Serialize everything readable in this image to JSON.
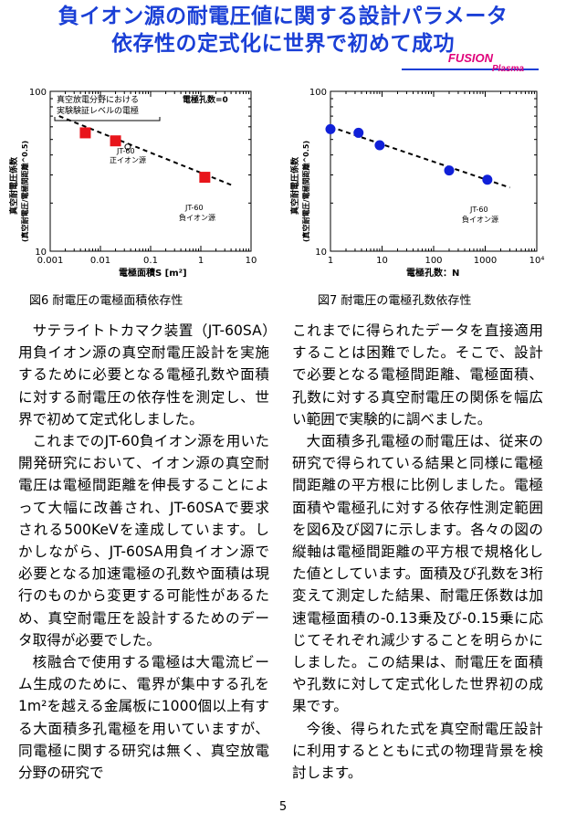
{
  "header": {
    "title_line1": "負イオン源の耐電圧値に関する設計パラメータ",
    "title_line2": "依存性の定式化に世界で初めて成功",
    "badge_fusion": "FUSION",
    "badge_plasma": "Plasma"
  },
  "figures": {
    "fig6_caption": "図6  耐電圧の電極面積依存性",
    "fig7_caption": "図7  耐電圧の電極孔数依存性"
  },
  "chart_data": [
    {
      "type": "scatter",
      "xscale": "log",
      "yscale": "log",
      "xlim": [
        0.001,
        10
      ],
      "ylim": [
        10,
        100
      ],
      "xticks": [
        "0.001",
        "0.01",
        "0.1",
        "1",
        "10"
      ],
      "yticks": [
        "10",
        "100"
      ],
      "xlabel": "電極面積S [m²]",
      "ylabel_line1": "真空耐電圧係数",
      "ylabel_line2": "(真空耐電圧/電極間距離^0.5)",
      "annotation_top": "真空放電分野における",
      "annotation_top2": "実験験証レベルの電極",
      "annotation_n": "電極孔数=0",
      "label_jt60_pos1": "JT-60",
      "label_jt60_pos2": "正イオン源",
      "label_jt60_neg1": "JT-60",
      "label_jt60_neg2": "負イオン源",
      "points": [
        {
          "x": 0.005,
          "y": 55
        },
        {
          "x": 0.02,
          "y": 49
        },
        {
          "x": 1.2,
          "y": 29
        }
      ],
      "open_point": {
        "x": 0.035,
        "y": 45
      },
      "fit_line": [
        {
          "x": 0.0015,
          "y": 70
        },
        {
          "x": 4,
          "y": 26
        }
      ]
    },
    {
      "type": "scatter",
      "xscale": "log",
      "yscale": "log",
      "xlim": [
        1,
        10000
      ],
      "ylim": [
        10,
        100
      ],
      "xticks": [
        "1",
        "10",
        "100",
        "1000",
        "10⁴"
      ],
      "yticks": [
        "10",
        "100"
      ],
      "xlabel": "電極孔数：N",
      "ylabel_line1": "真空耐電圧係数",
      "ylabel_line2": "(真空耐電圧/電極間距離^0.5)",
      "label_jt60_1": "JT-60",
      "label_jt60_2": "負イオン源",
      "points": [
        {
          "x": 1,
          "y": 58
        },
        {
          "x": 3.5,
          "y": 55
        },
        {
          "x": 9,
          "y": 46
        },
        {
          "x": 200,
          "y": 32
        },
        {
          "x": 1100,
          "y": 28
        }
      ],
      "fit_line": [
        {
          "x": 1,
          "y": 60
        },
        {
          "x": 3000,
          "y": 25
        }
      ]
    }
  ],
  "body": {
    "left": [
      "サテライトトカマク装置（JT-60SA）用負イオン源の真空耐電圧設計を実施するために必要となる電極孔数や面積に対する耐電圧の依存性を測定し、世界で初めて定式化しました。",
      "これまでのJT-60負イオン源を用いた開発研究において、イオン源の真空耐電圧は電極間距離を伸長することによって大幅に改善され、JT-60SAで要求される500KeVを達成しています。しかしながら、JT-60SA用負イオン源で必要となる加速電極の孔数や面積は現行のものから変更する可能性があるため、真空耐電圧を設計するためのデータ取得が必要でした。",
      "核融合で使用する電極は大電流ビーム生成のために、電界が集中する孔を1m²を越える金属板に1000個以上有する大面積多孔電極を用いていますが、同電極に関する研究は無く、真空放電分野の研究で"
    ],
    "right": [
      "これまでに得られたデータを直接適用することは困難でした。そこで、設計で必要となる電極間距離、電極面積、孔数に対する真空耐電圧の関係を幅広い範囲で実験的に調べました。",
      "大面積多孔電極の耐電圧は、従来の研究で得られている結果と同様に電極間距離の平方根に比例しました。電極面積や電極孔に対する依存性測定範囲を図6及び図7に示します。各々の図の縦軸は電極間距離の平方根で規格化した値としています。面積及び孔数を3桁変えて測定した結果、耐電圧係数は加速電極面積の-0.13乗及び-0.15乗に応じてそれぞれ減少することを明らかにしました。この結果は、耐電圧を面積や孔数に対して定式化した世界初の成果です。",
      "今後、得られた式を真空耐電圧設計に利用するとともに式の物理背景を検討します。"
    ]
  },
  "page_number": "5"
}
